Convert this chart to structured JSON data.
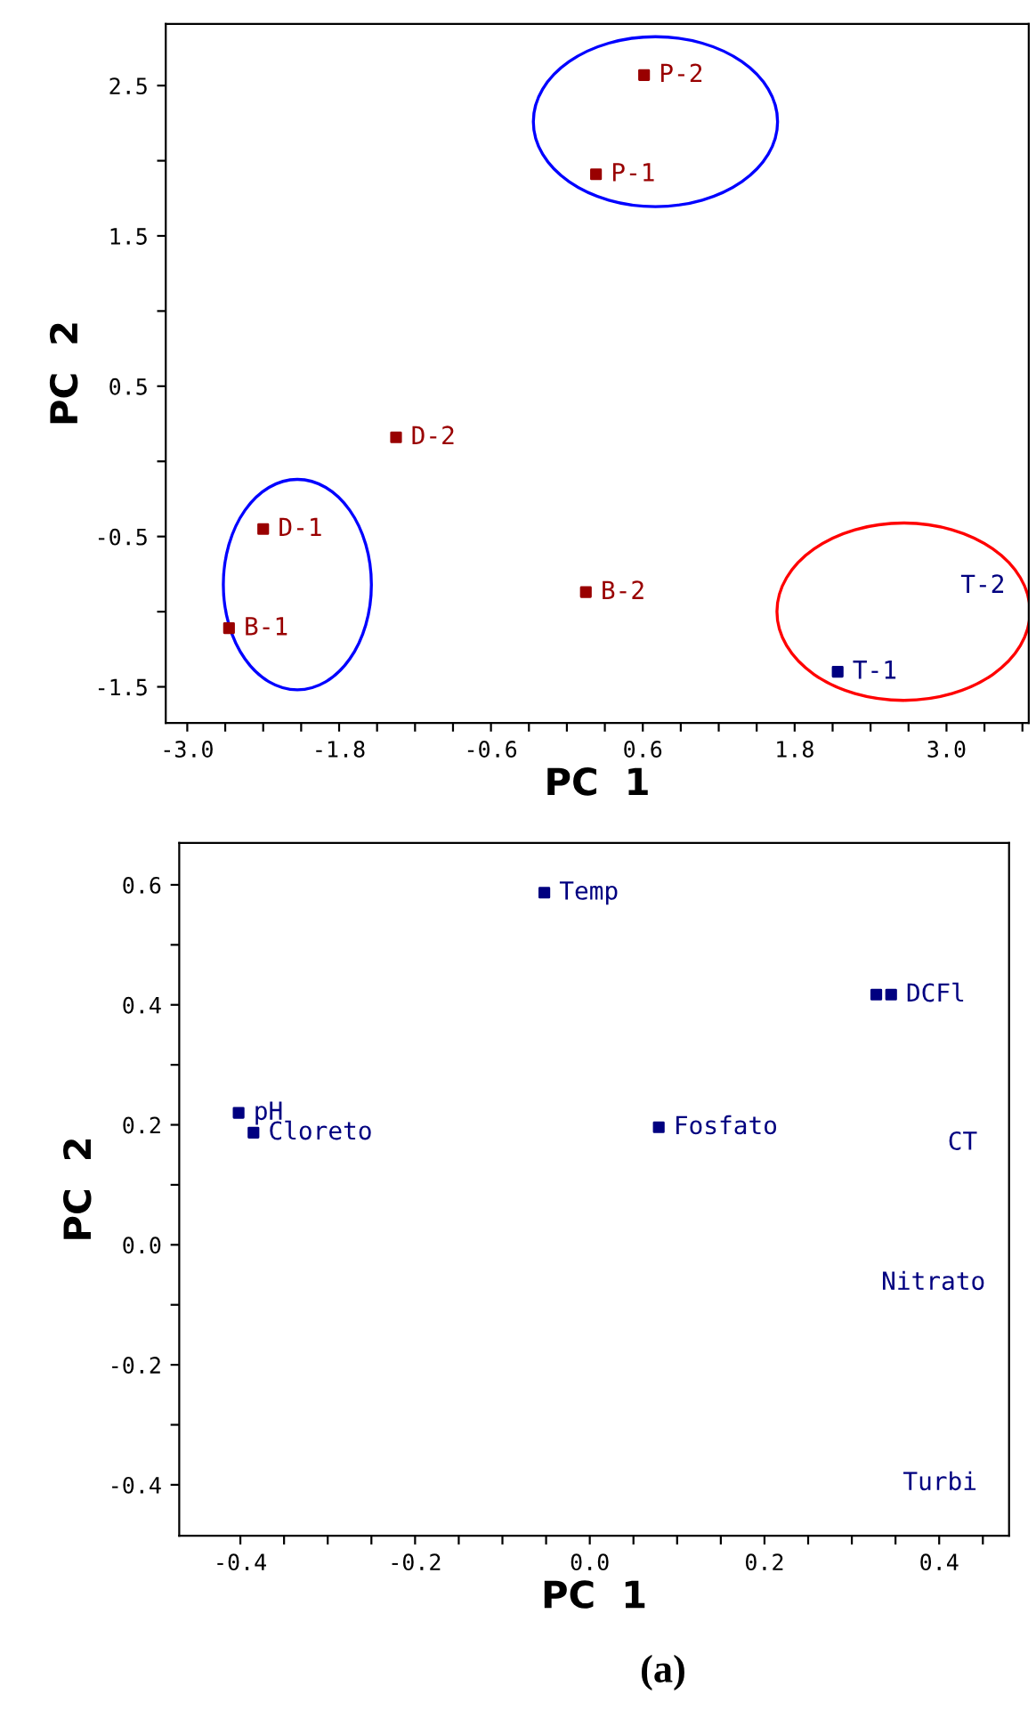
{
  "chart_data": [
    {
      "type": "scatter",
      "xlabel": "PC  1",
      "ylabel": "PC  2",
      "marker": "square",
      "grid": false,
      "xlim": [
        -3.17,
        3.65
      ],
      "ylim": [
        -1.74,
        2.91
      ],
      "xticks": [
        {
          "value": -3.0,
          "label": "-3.0"
        },
        {
          "value": -2.7,
          "label": null
        },
        {
          "value": -2.4,
          "label": null
        },
        {
          "value": -2.1,
          "label": null
        },
        -1.8,
        {
          "value": -1.5,
          "label": null
        },
        {
          "value": -1.2,
          "label": null
        },
        {
          "value": -0.9,
          "label": null
        },
        -0.6,
        {
          "value": -0.3,
          "label": null
        },
        {
          "value": 0.0,
          "label": null
        },
        {
          "value": 0.3,
          "label": null
        },
        0.6,
        {
          "value": 0.9,
          "label": null
        },
        {
          "value": 1.2,
          "label": null
        },
        {
          "value": 1.5,
          "label": null
        },
        1.8,
        {
          "value": 2.1,
          "label": null
        },
        {
          "value": 2.4,
          "label": null
        },
        {
          "value": 2.7,
          "label": null
        },
        {
          "value": 3.0,
          "label": "3.0"
        },
        {
          "value": 3.3,
          "label": null
        },
        {
          "value": 3.6,
          "label": null
        }
      ],
      "yticks": [
        -1.5,
        {
          "value": -1.0,
          "label": null
        },
        -0.5,
        {
          "value": 0.0,
          "label": null
        },
        0.5,
        {
          "value": 1.0,
          "label": null
        },
        1.5,
        {
          "value": 2.0,
          "label": null
        },
        2.5
      ],
      "series": [
        {
          "color": "#990000",
          "x": [
            0.61,
            0.23,
            -1.35,
            -2.4,
            -2.67,
            0.15
          ],
          "values": [
            2.57,
            1.91,
            0.16,
            -0.45,
            -1.11,
            -0.87
          ],
          "value_labels": [
            "P-2",
            "P-1",
            "D-2",
            "D-1",
            "B-1",
            "B-2"
          ]
        },
        {
          "color": "#000080",
          "x": [
            2.14
          ],
          "values": [
            -1.4
          ],
          "value_labels": [
            "T-1"
          ]
        }
      ],
      "annotations": [
        "T-2"
      ]
    },
    {
      "type": "scatter",
      "xlabel": "PC  1",
      "ylabel": "PC  2",
      "marker": "square",
      "grid": false,
      "xlim": [
        -0.47,
        0.48
      ],
      "ylim": [
        -0.485,
        0.67
      ],
      "xticks": [
        -0.4,
        {
          "value": -0.35,
          "label": null
        },
        {
          "value": -0.3,
          "label": null
        },
        {
          "value": -0.25,
          "label": null
        },
        -0.2,
        {
          "value": -0.15,
          "label": null
        },
        {
          "value": -0.1,
          "label": null
        },
        {
          "value": -0.05,
          "label": null
        },
        {
          "value": 0.0,
          "label": "0.0"
        },
        {
          "value": 0.05,
          "label": null
        },
        {
          "value": 0.1,
          "label": null
        },
        {
          "value": 0.15,
          "label": null
        },
        0.2,
        {
          "value": 0.25,
          "label": null
        },
        {
          "value": 0.3,
          "label": null
        },
        {
          "value": 0.35,
          "label": null
        },
        0.4,
        {
          "value": 0.45,
          "label": null
        }
      ],
      "yticks": [
        -0.4,
        {
          "value": -0.3,
          "label": null
        },
        -0.2,
        {
          "value": -0.1,
          "label": null
        },
        {
          "value": 0.0,
          "label": "0.0"
        },
        {
          "value": 0.1,
          "label": null
        },
        0.2,
        {
          "value": 0.3,
          "label": null
        },
        0.4,
        {
          "value": 0.5,
          "label": null
        },
        0.6
      ],
      "series": [
        {
          "color": "#000080",
          "x": [
            -0.052,
            0.328,
            0.345,
            -0.402,
            -0.385,
            0.079
          ],
          "values": [
            0.587,
            0.417,
            0.417,
            0.22,
            0.187,
            0.196
          ],
          "value_labels": [
            "Temp",
            null,
            "DCFl",
            "pH",
            "Cloreto",
            "Fosfato"
          ]
        }
      ],
      "annotations": [
        "CT",
        "Nitrato",
        "Turbi",
        "(a)"
      ]
    }
  ]
}
